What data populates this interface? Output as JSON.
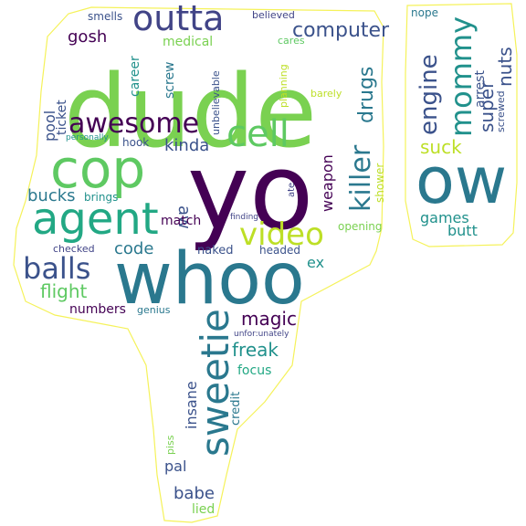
{
  "words": [
    {
      "text": "dude",
      "color": "#7ad151"
    },
    {
      "text": "yo",
      "color": "#440154"
    },
    {
      "text": "whoo",
      "color": "#2a788e"
    },
    {
      "text": "ow",
      "color": "#2a788e"
    },
    {
      "text": "cop",
      "color": "#5ec962"
    },
    {
      "text": "agent",
      "color": "#22a884"
    },
    {
      "text": "sweetie",
      "color": "#2a788e"
    },
    {
      "text": "outta",
      "color": "#414487"
    },
    {
      "text": "cell",
      "color": "#5ec962"
    },
    {
      "text": "awesome",
      "color": "#440154"
    },
    {
      "text": "balls",
      "color": "#3b528b"
    },
    {
      "text": "video",
      "color": "#bddf26"
    },
    {
      "text": "mommy",
      "color": "#21918c"
    },
    {
      "text": "killer",
      "color": "#2a788e"
    },
    {
      "text": "engine",
      "color": "#3b528b"
    },
    {
      "text": "computer",
      "color": "#3b528b"
    },
    {
      "text": "drugs",
      "color": "#2a788e"
    },
    {
      "text": "nuts",
      "color": "#3b528b"
    },
    {
      "text": "super",
      "color": "#3b528b"
    },
    {
      "text": "suck",
      "color": "#bddf26"
    },
    {
      "text": "magic",
      "color": "#440154"
    },
    {
      "text": "freak",
      "color": "#21918c"
    },
    {
      "text": "flight",
      "color": "#5ec962"
    },
    {
      "text": "bucks",
      "color": "#2a788e"
    },
    {
      "text": "kinda",
      "color": "#3b528b"
    },
    {
      "text": "aw",
      "color": "#3b528b"
    },
    {
      "text": "gosh",
      "color": "#440154"
    },
    {
      "text": "code",
      "color": "#2a788e"
    },
    {
      "text": "pool",
      "color": "#3b528b"
    },
    {
      "text": "weapon",
      "color": "#440154"
    },
    {
      "text": "games",
      "color": "#21918c"
    },
    {
      "text": "butt",
      "color": "#21918c"
    },
    {
      "text": "babe",
      "color": "#3b528b"
    },
    {
      "text": "insane",
      "color": "#3b528b"
    },
    {
      "text": "pal",
      "color": "#3b528b"
    },
    {
      "text": "match",
      "color": "#440154"
    },
    {
      "text": "ex",
      "color": "#21918c"
    },
    {
      "text": "focus",
      "color": "#22a884"
    },
    {
      "text": "numbers",
      "color": "#440154"
    },
    {
      "text": "ticket",
      "color": "#3b528b"
    },
    {
      "text": "career",
      "color": "#21918c"
    },
    {
      "text": "screw",
      "color": "#2a788e"
    },
    {
      "text": "medical",
      "color": "#7ad151"
    },
    {
      "text": "arrest",
      "color": "#3b528b"
    },
    {
      "text": "credit",
      "color": "#2a788e"
    },
    {
      "text": "naked",
      "color": "#3b528b"
    },
    {
      "text": "shower",
      "color": "#bddf26"
    },
    {
      "text": "lied",
      "color": "#7ad151"
    },
    {
      "text": "hook",
      "color": "#3b528b"
    },
    {
      "text": "headed",
      "color": "#3b528b"
    },
    {
      "text": "brings",
      "color": "#21918c"
    },
    {
      "text": "opening",
      "color": "#7ad151"
    },
    {
      "text": "smells",
      "color": "#3b528b"
    },
    {
      "text": "believed",
      "color": "#414487"
    },
    {
      "text": "cares",
      "color": "#5ec962"
    },
    {
      "text": "nope",
      "color": "#2a788e"
    },
    {
      "text": "barely",
      "color": "#bddf26"
    },
    {
      "text": "planning",
      "color": "#bddf26"
    },
    {
      "text": "unbelievable",
      "color": "#3b528b"
    },
    {
      "text": "screwed",
      "color": "#3b528b"
    },
    {
      "text": "personally",
      "color": "#21918c"
    },
    {
      "text": "genius",
      "color": "#2a788e"
    },
    {
      "text": "checked",
      "color": "#414487"
    },
    {
      "text": "finding",
      "color": "#414487"
    },
    {
      "text": "ate",
      "color": "#414487"
    },
    {
      "text": "unfor:unately",
      "color": "#414487"
    },
    {
      "text": "piss",
      "color": "#7ad151"
    }
  ],
  "colors": {
    "outline": "#f5f25a",
    "background": "#ffffff"
  }
}
